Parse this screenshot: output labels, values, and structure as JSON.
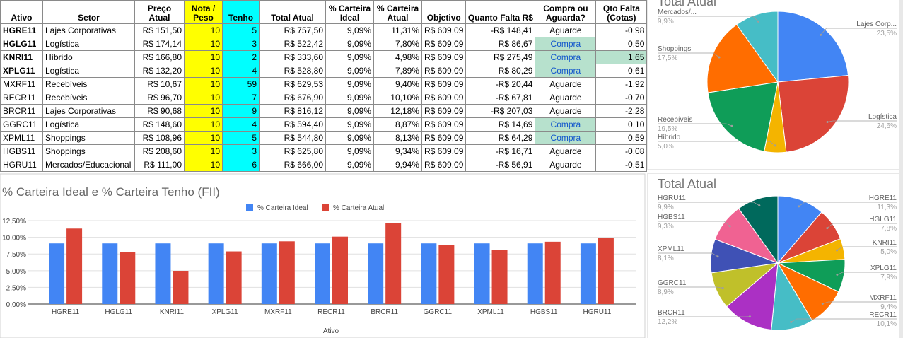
{
  "table": {
    "columns": [
      "Ativo",
      "Setor",
      "Preço Atual",
      "Nota / Peso",
      "Tenho",
      "Total Atual",
      "% Carteira Ideal",
      "% Carteira Atual",
      "Objetivo",
      "Quanto Falta R$",
      "Compra ou Aguarda?",
      "Qto Falta (Cotas)"
    ],
    "rows": [
      [
        "HGRE11",
        "Lajes Corporativas",
        "R$ 151,50",
        "10",
        "5",
        "R$ 757,50",
        "9,09%",
        "11,31%",
        "R$ 609,09",
        "-R$ 148,41",
        "Aguarde",
        "-0,98"
      ],
      [
        "HGLG11",
        "Logística",
        "R$ 174,14",
        "10",
        "3",
        "R$ 522,42",
        "9,09%",
        "7,80%",
        "R$ 609,09",
        "R$ 86,67",
        "Compra",
        "0,50"
      ],
      [
        "KNRI11",
        "Híbrido",
        "R$ 166,80",
        "10",
        "2",
        "R$ 333,60",
        "9,09%",
        "4,98%",
        "R$ 609,09",
        "R$ 275,49",
        "Compra",
        "1,65"
      ],
      [
        "XPLG11",
        "Logística",
        "R$ 132,20",
        "10",
        "4",
        "R$ 528,80",
        "9,09%",
        "7,89%",
        "R$ 609,09",
        "R$ 80,29",
        "Compra",
        "0,61"
      ],
      [
        "MXRF11",
        "Recebíveis",
        "R$ 10,67",
        "10",
        "59",
        "R$ 629,53",
        "9,09%",
        "9,40%",
        "R$ 609,09",
        "-R$ 20,44",
        "Aguarde",
        "-1,92"
      ],
      [
        "RECR11",
        "Recebíveis",
        "R$ 96,70",
        "10",
        "7",
        "R$ 676,90",
        "9,09%",
        "10,10%",
        "R$ 609,09",
        "-R$ 67,81",
        "Aguarde",
        "-0,70"
      ],
      [
        "BRCR11",
        "Lajes Corporativas",
        "R$ 90,68",
        "10",
        "9",
        "R$ 816,12",
        "9,09%",
        "12,18%",
        "R$ 609,09",
        "-R$ 207,03",
        "Aguarde",
        "-2,28"
      ],
      [
        "GGRC11",
        "Logística",
        "R$ 148,60",
        "10",
        "4",
        "R$ 594,40",
        "9,09%",
        "8,87%",
        "R$ 609,09",
        "R$ 14,69",
        "Compra",
        "0,10"
      ],
      [
        "XPML11",
        "Shoppings",
        "R$ 108,96",
        "10",
        "5",
        "R$ 544,80",
        "9,09%",
        "8,13%",
        "R$ 609,09",
        "R$ 64,29",
        "Compra",
        "0,59"
      ],
      [
        "HGBS11",
        "Shoppings",
        "R$ 208,60",
        "10",
        "3",
        "R$ 625,80",
        "9,09%",
        "9,34%",
        "R$ 609,09",
        "-R$ 16,71",
        "Aguarde",
        "-0,08"
      ],
      [
        "HGRU11",
        "Mercados/Educacional",
        "R$ 111,00",
        "10",
        "6",
        "R$ 666,00",
        "9,09%",
        "9,94%",
        "R$ 609,09",
        "-R$ 56,91",
        "Aguarde",
        "-0,51"
      ]
    ]
  },
  "chart_data": [
    {
      "type": "bar",
      "title": "% Carteira Ideal e % Carteira Tenho (FII)",
      "x_label": "Ativo",
      "categories": [
        "HGRE11",
        "HGLG11",
        "KNRI11",
        "XPLG11",
        "MXRF11",
        "RECR11",
        "BRCR11",
        "GGRC11",
        "XPML11",
        "HGBS11",
        "HGRU11"
      ],
      "series": [
        {
          "name": "% Carteira Ideal",
          "color": "#4285f4",
          "values": [
            9.09,
            9.09,
            9.09,
            9.09,
            9.09,
            9.09,
            9.09,
            9.09,
            9.09,
            9.09,
            9.09
          ]
        },
        {
          "name": "% Carteira Atual",
          "color": "#db4437",
          "values": [
            11.31,
            7.8,
            4.98,
            7.89,
            9.4,
            10.1,
            12.18,
            8.87,
            8.13,
            9.34,
            9.94
          ]
        }
      ],
      "ylim": [
        0,
        13.5
      ],
      "yticks": [
        {
          "value": 0,
          "label": "0,00%"
        },
        {
          "value": 2.5,
          "label": "2,50%"
        },
        {
          "value": 5,
          "label": "5,00%"
        },
        {
          "value": 7.5,
          "label": "7,50%"
        },
        {
          "value": 10,
          "label": "10,00%"
        },
        {
          "value": 12.5,
          "label": "12,50%"
        }
      ],
      "grid": true,
      "legend": "top"
    },
    {
      "type": "pie",
      "title": "Total Atual",
      "categories": [
        "Lajes Corp...",
        "Logística",
        "Híbrido",
        "Recebíveis",
        "Shoppings",
        "Mercados/..."
      ],
      "values": [
        23.5,
        24.6,
        5.0,
        19.5,
        17.5,
        9.9
      ],
      "value_labels": [
        "23,5%",
        "24,6%",
        "5,0%",
        "19,5%",
        "17,5%",
        "9,9%"
      ],
      "colors": [
        "#4285f4",
        "#db4437",
        "#f4b400",
        "#0f9d58",
        "#ff6d00",
        "#46bdc6"
      ]
    },
    {
      "type": "pie",
      "title": "Total Atual",
      "categories": [
        "HGRE11",
        "HGLG11",
        "KNRI11",
        "XPLG11",
        "MXRF11",
        "RECR11",
        "BRCR11",
        "GGRC11",
        "XPML11",
        "HGBS11",
        "HGRU11"
      ],
      "values": [
        11.3,
        7.8,
        5.0,
        7.9,
        9.4,
        10.1,
        12.2,
        8.9,
        8.1,
        9.3,
        9.9
      ],
      "value_labels": [
        "11,3%",
        "7,8%",
        "5,0%",
        "7,9%",
        "9,4%",
        "10,1%",
        "12,2%",
        "8,9%",
        "8,1%",
        "9,3%",
        "9,9%"
      ],
      "colors": [
        "#4285f4",
        "#db4437",
        "#f4b400",
        "#0f9d58",
        "#ff6d00",
        "#46bdc6",
        "#ab30c4",
        "#c0c02a",
        "#3f51b5",
        "#f06292",
        "#00695c"
      ]
    }
  ]
}
